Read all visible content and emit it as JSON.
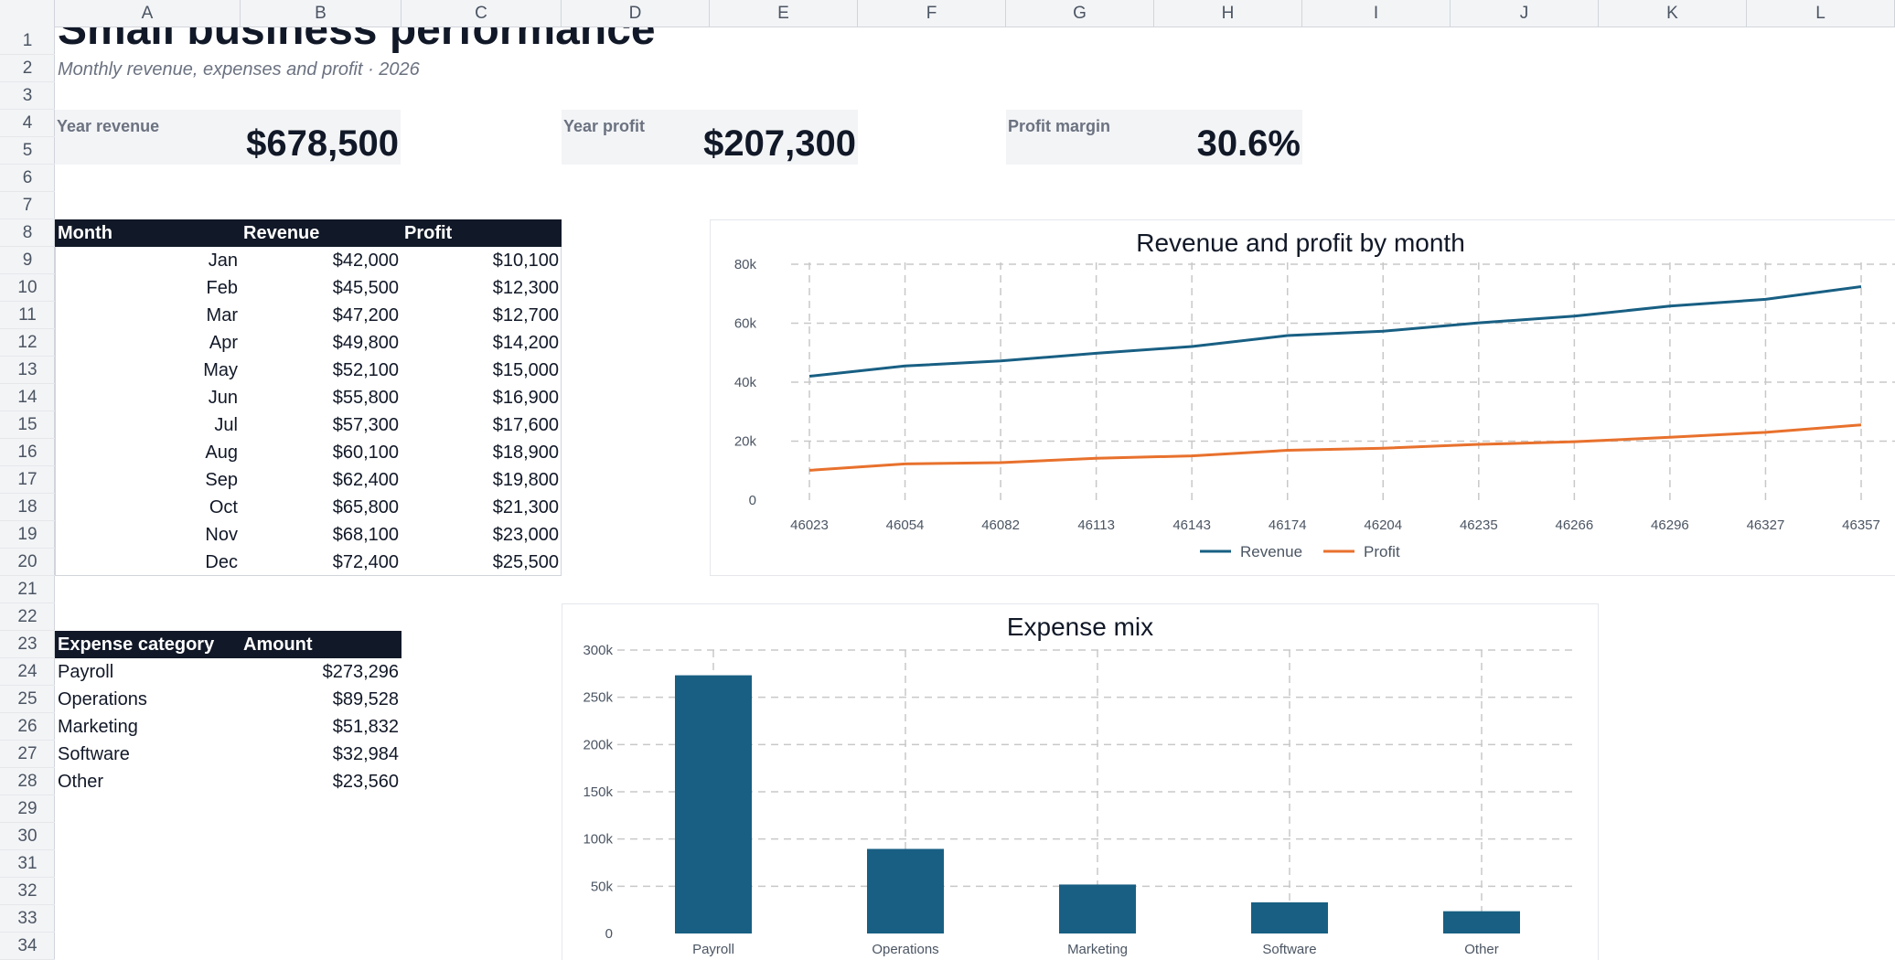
{
  "columns": [
    "A",
    "B",
    "C",
    "D",
    "E",
    "F",
    "G",
    "H",
    "I",
    "J",
    "K",
    "L"
  ],
  "rows": [
    "1",
    "2",
    "3",
    "4",
    "5",
    "6",
    "7",
    "8",
    "9",
    "10",
    "11",
    "12",
    "13",
    "14",
    "15",
    "16",
    "17",
    "18",
    "19",
    "20",
    "21",
    "22",
    "23",
    "24",
    "25",
    "26",
    "27",
    "28",
    "29",
    "30",
    "31",
    "32",
    "33",
    "34"
  ],
  "report": {
    "title": "Small business performance",
    "subtitle": "Monthly revenue, expenses and profit · 2026"
  },
  "kpis": [
    {
      "label": "Year revenue",
      "value": "$678,500"
    },
    {
      "label": "Year profit",
      "value": "$207,300"
    },
    {
      "label": "Profit margin",
      "value": "30.6%"
    }
  ],
  "monthly_table": {
    "headers": [
      "Month",
      "Revenue",
      "Profit"
    ],
    "rows": [
      [
        "Jan",
        "$42,000",
        "$10,100"
      ],
      [
        "Feb",
        "$45,500",
        "$12,300"
      ],
      [
        "Mar",
        "$47,200",
        "$12,700"
      ],
      [
        "Apr",
        "$49,800",
        "$14,200"
      ],
      [
        "May",
        "$52,100",
        "$15,000"
      ],
      [
        "Jun",
        "$55,800",
        "$16,900"
      ],
      [
        "Jul",
        "$57,300",
        "$17,600"
      ],
      [
        "Aug",
        "$60,100",
        "$18,900"
      ],
      [
        "Sep",
        "$62,400",
        "$19,800"
      ],
      [
        "Oct",
        "$65,800",
        "$21,300"
      ],
      [
        "Nov",
        "$68,100",
        "$23,000"
      ],
      [
        "Dec",
        "$72,400",
        "$25,500"
      ]
    ]
  },
  "expense_table": {
    "headers": [
      "Expense category",
      "Amount"
    ],
    "rows": [
      [
        "Payroll",
        "$273,296"
      ],
      [
        "Operations",
        "$89,528"
      ],
      [
        "Marketing",
        "$51,832"
      ],
      [
        "Software",
        "$32,984"
      ],
      [
        "Other",
        "$23,560"
      ]
    ]
  },
  "colors": {
    "revenue": "#185f83",
    "profit": "#e8712d",
    "bar": "#185f83",
    "header_bg": "#111827",
    "grid": "#c8c8c8"
  },
  "chart_data": [
    {
      "type": "line",
      "title": "Revenue and profit by month",
      "x": [
        "46023",
        "46054",
        "46082",
        "46113",
        "46143",
        "46174",
        "46204",
        "46235",
        "46266",
        "46296",
        "46327",
        "46357"
      ],
      "series": [
        {
          "name": "Revenue",
          "values": [
            42000,
            45500,
            47200,
            49800,
            52100,
            55800,
            57300,
            60100,
            62400,
            65800,
            68100,
            72400
          ]
        },
        {
          "name": "Profit",
          "values": [
            10100,
            12300,
            12700,
            14200,
            15000,
            16900,
            17600,
            18900,
            19800,
            21300,
            23000,
            25500
          ]
        }
      ],
      "ylim": [
        0,
        80000
      ],
      "yticks": [
        "0",
        "20k",
        "40k",
        "60k",
        "80k"
      ],
      "grid": true,
      "legend": "bottom"
    },
    {
      "type": "bar",
      "title": "Expense mix",
      "categories": [
        "Payroll",
        "Operations",
        "Marketing",
        "Software",
        "Other"
      ],
      "values": [
        273296,
        89528,
        51832,
        32984,
        23560
      ],
      "ylim": [
        0,
        300000
      ],
      "yticks": [
        "0",
        "50k",
        "100k",
        "150k",
        "200k",
        "250k",
        "300k"
      ],
      "grid": true
    }
  ]
}
